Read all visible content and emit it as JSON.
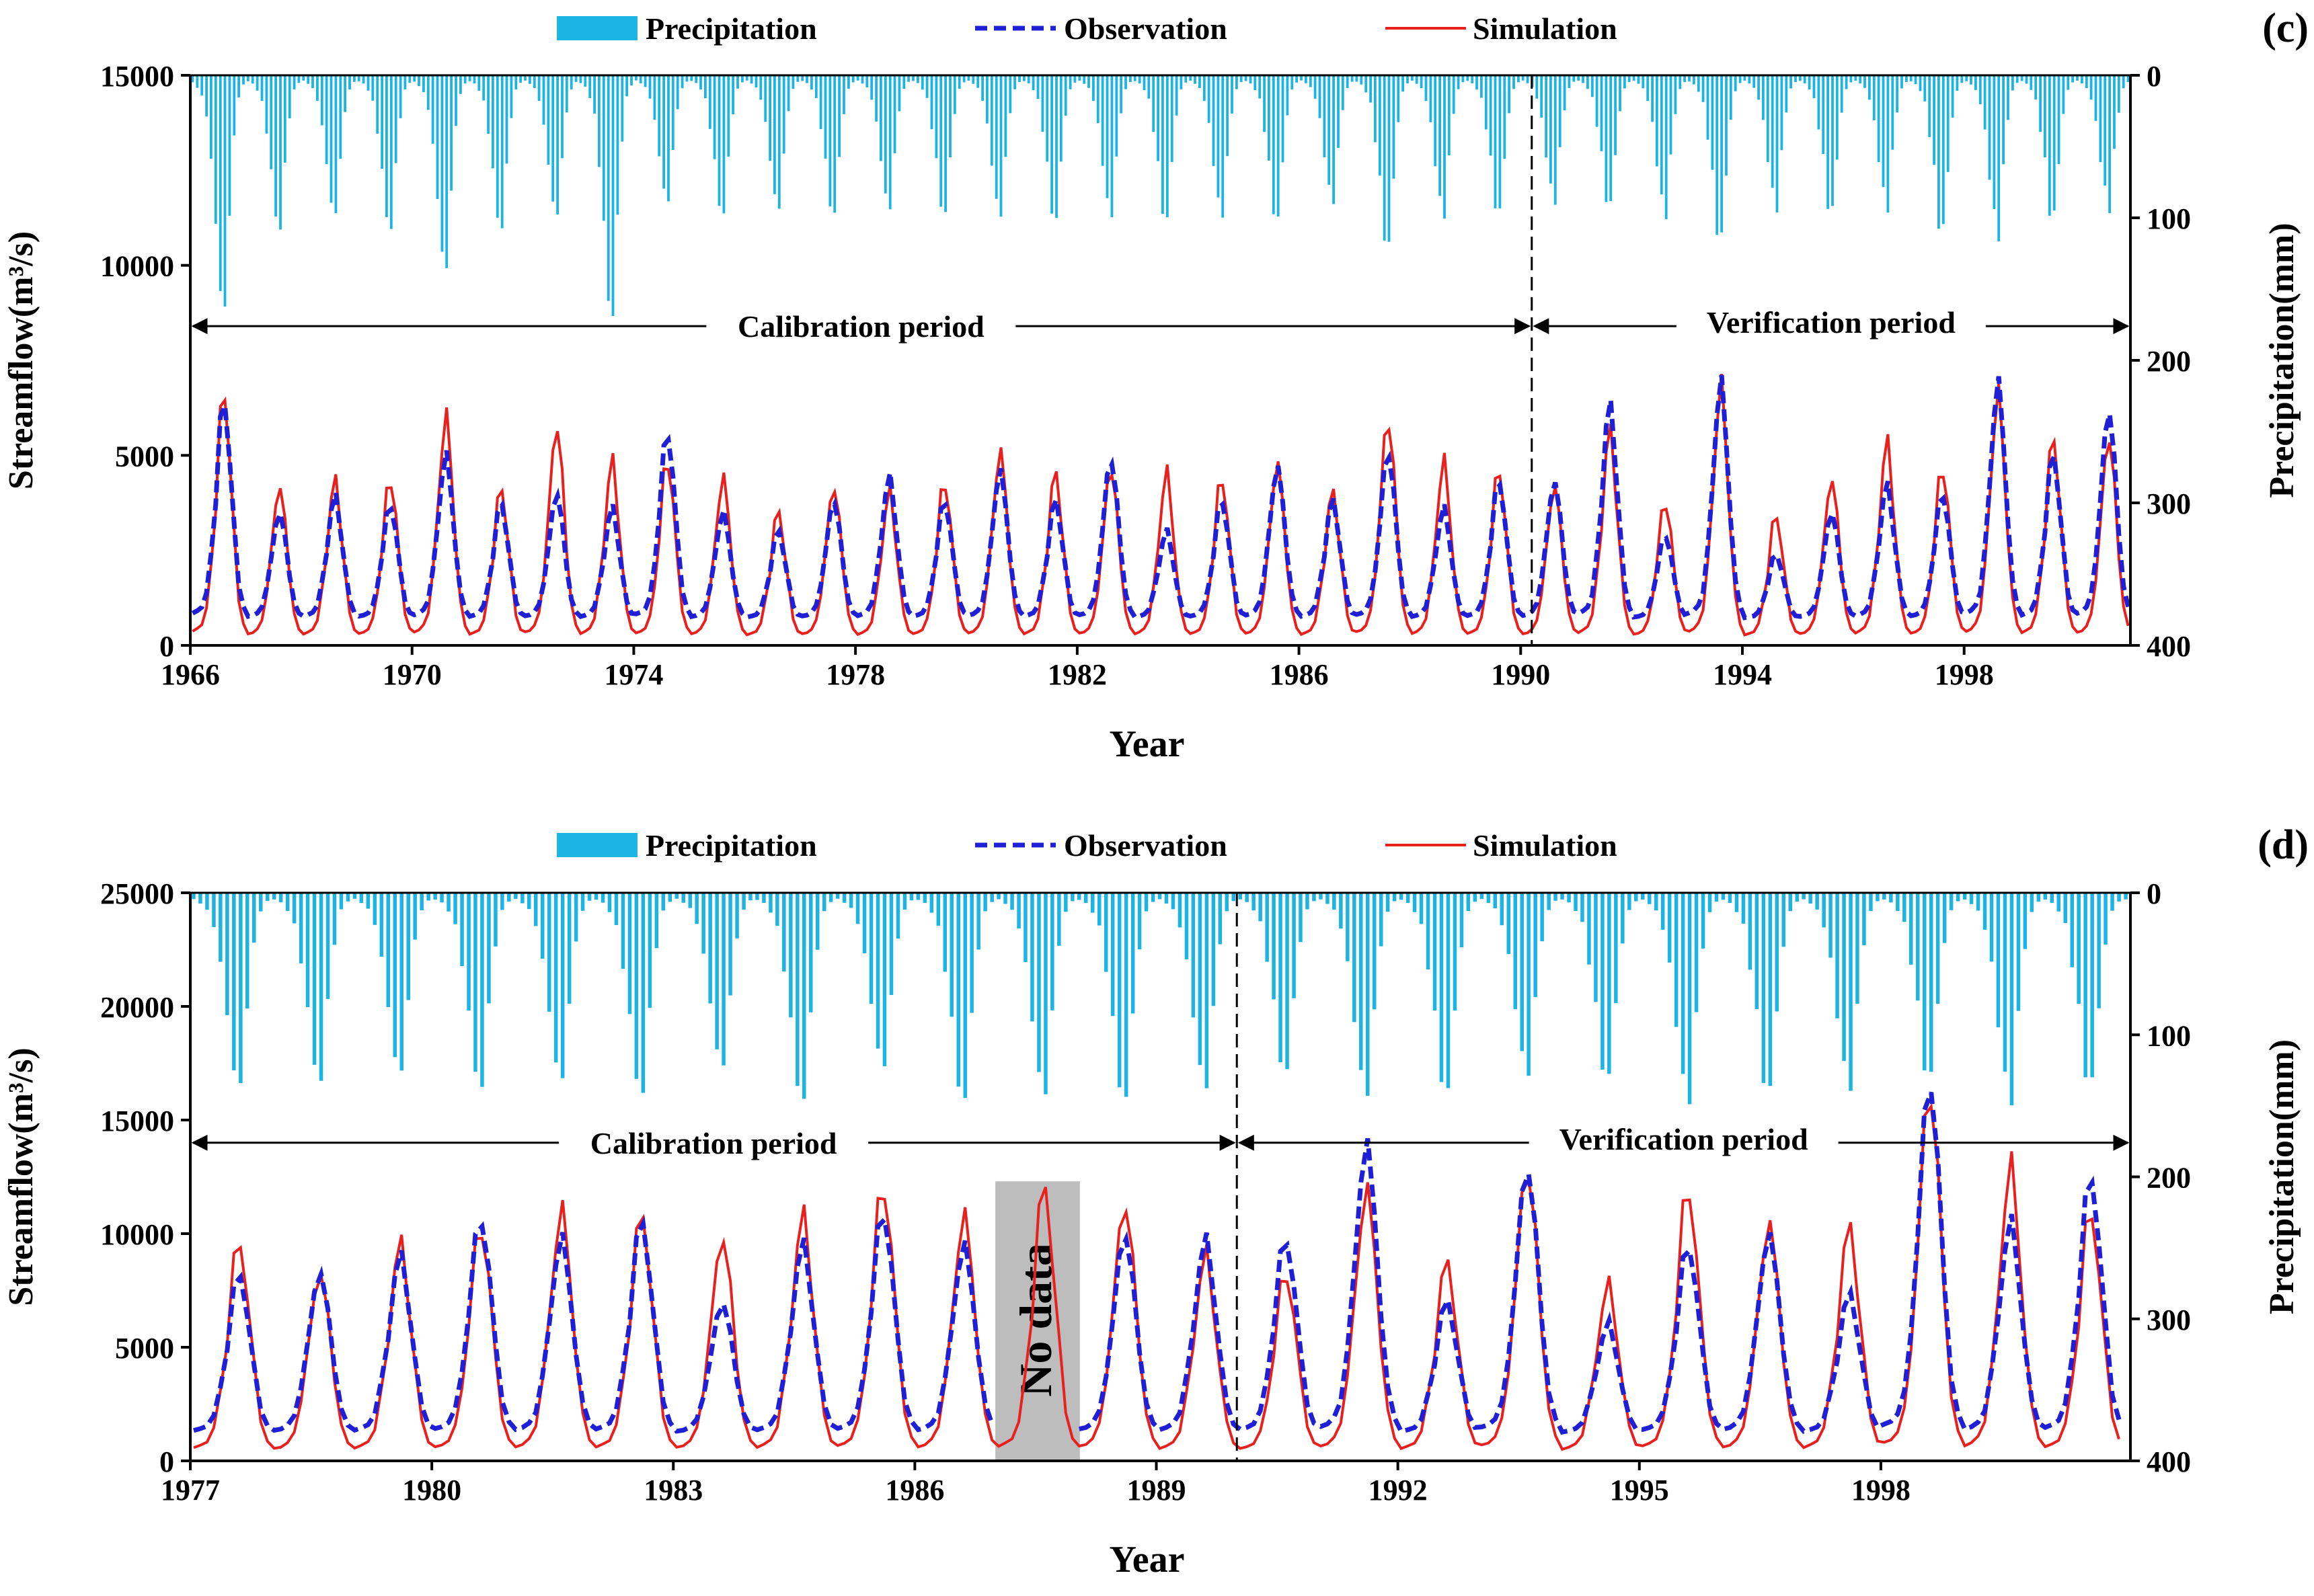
{
  "legend": {
    "precipitation": "Precipitation",
    "observation": "Observation",
    "simulation": "Simulation"
  },
  "colors": {
    "precipitation": "#1cb4e3",
    "observation": "#1f1fd6",
    "simulation": "#e8201e",
    "nodata": "#bdbdbd"
  },
  "chart_data": [
    {
      "type": "line",
      "panel_label": "(c)",
      "xlabel": "Year",
      "ylabel_left": "Streamflow(m³/s)",
      "ylabel_right": "Precipitation(mm)",
      "x_range": [
        1966,
        2001
      ],
      "x_ticks": [
        "1966",
        "1970",
        "1974",
        "1978",
        "1982",
        "1986",
        "1990",
        "1994",
        "1998"
      ],
      "x_tick_values": [
        1966,
        1970,
        1974,
        1978,
        1982,
        1986,
        1990,
        1994,
        1998
      ],
      "ylim_left": [
        0,
        15000
      ],
      "y_ticks_left": [
        "0",
        "5000",
        "10000",
        "15000"
      ],
      "y_tick_values_left": [
        0,
        5000,
        10000,
        15000
      ],
      "ylim_right_inverted": [
        0,
        400
      ],
      "y_ticks_right": [
        "0",
        "100",
        "200",
        "300",
        "400"
      ],
      "y_tick_values_right": [
        0,
        100,
        200,
        300,
        400
      ],
      "split_year": 1990.2,
      "calibration_label": "Calibration period",
      "verification_label": "Verification period",
      "period_arrow_value": 8400,
      "annual_peaks": {
        "years": [
          1966,
          1967,
          1968,
          1969,
          1970,
          1971,
          1972,
          1973,
          1974,
          1975,
          1976,
          1977,
          1978,
          1979,
          1980,
          1981,
          1982,
          1983,
          1984,
          1985,
          1986,
          1987,
          1988,
          1989,
          1990,
          1991,
          1992,
          1993,
          1994,
          1995,
          1996,
          1997,
          1998,
          1999,
          2000
        ],
        "observation": [
          6400,
          3500,
          3900,
          3700,
          5000,
          3700,
          4000,
          3600,
          5600,
          3500,
          3000,
          3800,
          4400,
          3800,
          4600,
          3800,
          4900,
          3000,
          3800,
          4700,
          3800,
          5100,
          3600,
          4300,
          4300,
          6300,
          2900,
          6900,
          2400,
          3500,
          4200,
          4000,
          6900,
          5000,
          6200
        ],
        "simulation": [
          6600,
          4200,
          4300,
          4400,
          6000,
          4100,
          5800,
          4800,
          4900,
          4400,
          3500,
          4200,
          4000,
          4300,
          5100,
          4500,
          4700,
          4500,
          4400,
          4800,
          4000,
          6000,
          4800,
          4600,
          4200,
          5600,
          3800,
          6800,
          3400,
          4400,
          5300,
          4700,
          6600,
          5400,
          5500
        ]
      },
      "annual_precip_peaks_mm": [
        170,
        110,
        100,
        110,
        140,
        110,
        100,
        175,
        90,
        100,
        95,
        100,
        95,
        100,
        100,
        105,
        100,
        105,
        100,
        105,
        90,
        125,
        100,
        100,
        90,
        95,
        100,
        120,
        95,
        100,
        95,
        115,
        115,
        105,
        95,
        100
      ]
    },
    {
      "type": "line",
      "panel_label": "(d)",
      "xlabel": "Year",
      "ylabel_left": "Streamflow(m³/s)",
      "ylabel_right": "Precipitation(mm)",
      "x_range": [
        1977,
        2001.1
      ],
      "x_ticks": [
        "1977",
        "1980",
        "1983",
        "1986",
        "1989",
        "1992",
        "1995",
        "1998"
      ],
      "x_tick_values": [
        1977,
        1980,
        1983,
        1986,
        1989,
        1992,
        1995,
        1998
      ],
      "ylim_left": [
        0,
        25000
      ],
      "y_ticks_left": [
        "0",
        "5000",
        "10000",
        "15000",
        "20000",
        "25000"
      ],
      "y_tick_values_left": [
        0,
        5000,
        10000,
        15000,
        20000,
        25000
      ],
      "ylim_right_inverted": [
        0,
        400
      ],
      "y_ticks_right": [
        "0",
        "100",
        "200",
        "300",
        "400"
      ],
      "y_tick_values_right": [
        0,
        100,
        200,
        300,
        400
      ],
      "split_year": 1990,
      "calibration_label": "Calibration period",
      "verification_label": "Verification period",
      "period_arrow_value": 14000,
      "no_data_label": "No data",
      "no_data_range": [
        1987.0,
        1988.05
      ],
      "annual_peaks": {
        "years": [
          1977,
          1978,
          1979,
          1980,
          1981,
          1982,
          1983,
          1984,
          1985,
          1986,
          1987,
          1988,
          1989,
          1990,
          1991,
          1992,
          1993,
          1994,
          1995,
          1996,
          1997,
          1998,
          1999,
          2000
        ],
        "observation": [
          8200,
          8300,
          9000,
          10700,
          9800,
          10500,
          7000,
          9500,
          11000,
          9500,
          null,
          10000,
          9700,
          9800,
          14000,
          7000,
          13000,
          6000,
          9500,
          10000,
          7300,
          16800,
          10500,
          12500
        ],
        "simulation": [
          9600,
          8300,
          9500,
          10400,
          11000,
          10800,
          9900,
          10700,
          12200,
          10800,
          12000,
          11400,
          9000,
          8300,
          12000,
          8700,
          13000,
          7700,
          12000,
          10500,
          10200,
          16500,
          12900,
          11000
        ]
      },
      "annual_precip_peaks_mm": [
        140,
        135,
        130,
        140,
        135,
        145,
        125,
        150,
        125,
        150,
        145,
        150,
        140,
        130,
        145,
        145,
        130,
        135,
        150,
        145,
        140,
        135,
        150,
        140,
        140
      ]
    }
  ]
}
